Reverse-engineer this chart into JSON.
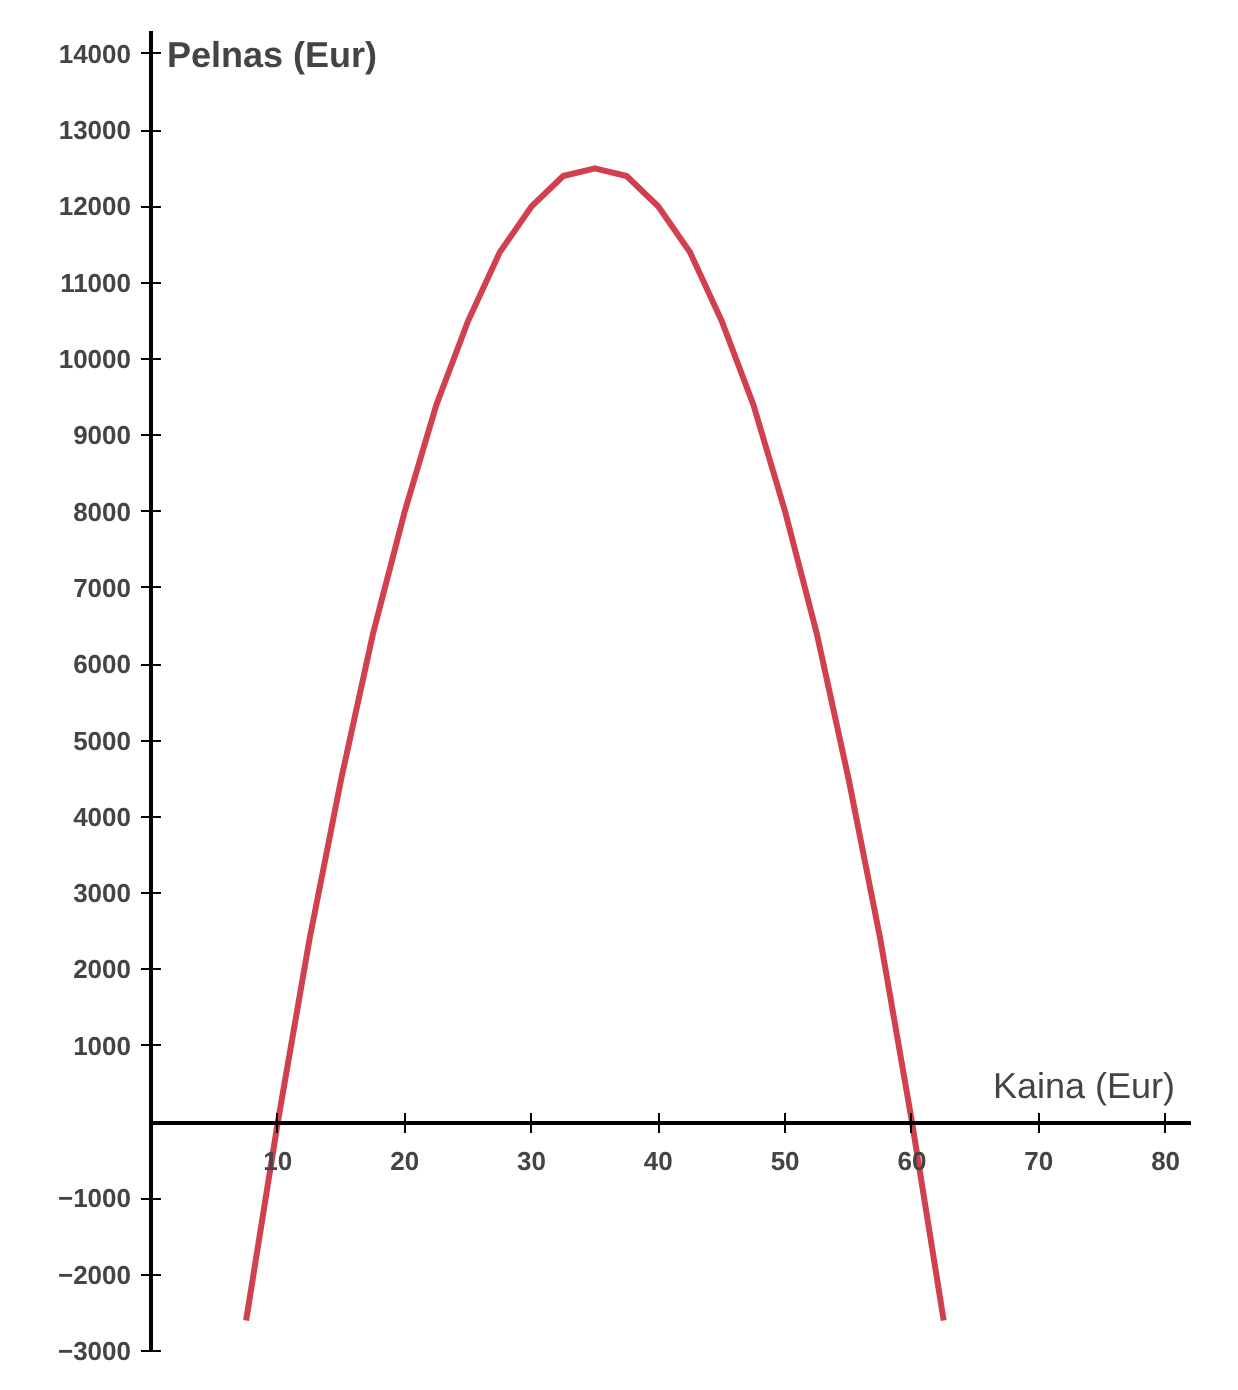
{
  "chart_data": {
    "type": "line",
    "xlabel": "Kaina (Eur)",
    "ylabel": "Pelnas (Eur)",
    "x": [
      7.5,
      10,
      12.5,
      15,
      17.5,
      20,
      22.5,
      25,
      27.5,
      30,
      32.5,
      35,
      37.5,
      40,
      42.5,
      45,
      47.5,
      50,
      52.5,
      55,
      57.5,
      60,
      62.5
    ],
    "series": [
      {
        "color": "#d0404f",
        "values": [
          -2600,
          0,
          2400,
          4500,
          6400,
          8000,
          9400,
          10500,
          11400,
          12000,
          12400,
          12500,
          12400,
          12000,
          11400,
          10500,
          9400,
          8000,
          6400,
          4500,
          2400,
          0,
          -2600
        ]
      }
    ],
    "xlim": [
      0,
      82
    ],
    "ylim": [
      -3000,
      14300
    ],
    "xticks": [
      10,
      20,
      30,
      40,
      50,
      60,
      70,
      80
    ],
    "yticks": [
      -3000,
      -2000,
      -1000,
      1000,
      2000,
      3000,
      4000,
      5000,
      6000,
      7000,
      8000,
      9000,
      10000,
      11000,
      12000,
      13000,
      14000
    ],
    "grid": false,
    "line_style": "solid",
    "marker": "none"
  }
}
